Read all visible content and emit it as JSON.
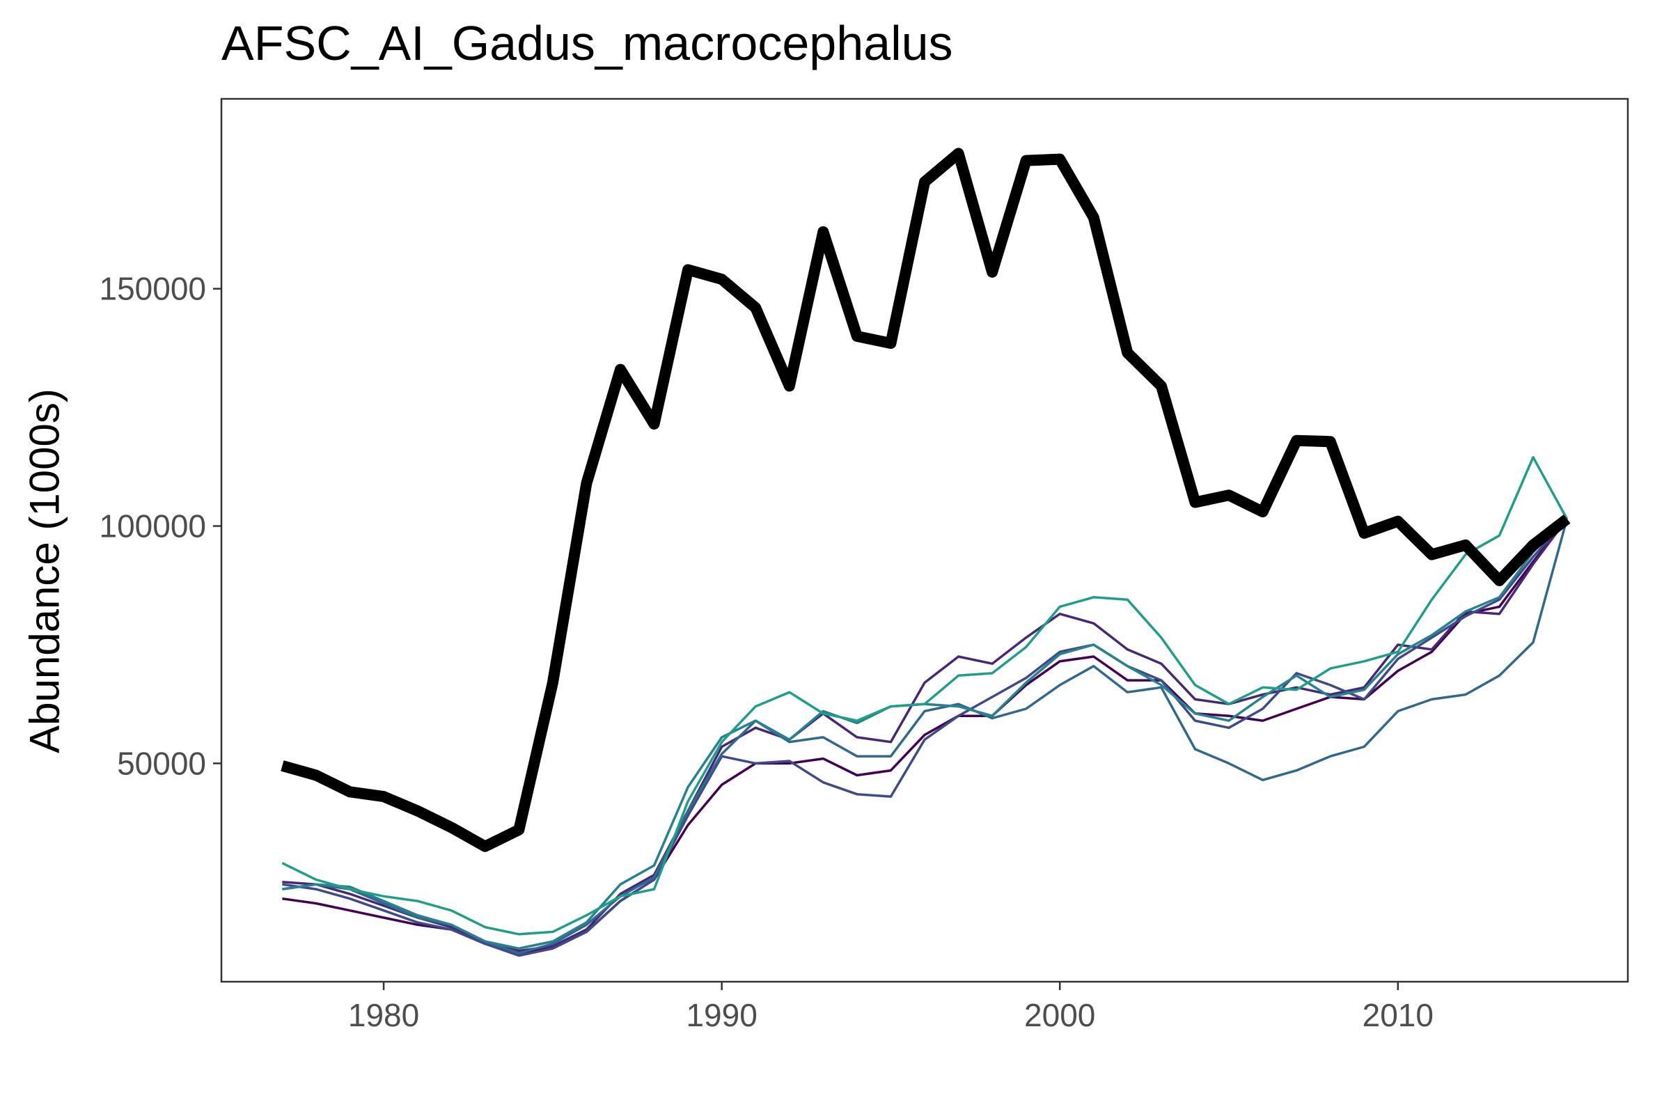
{
  "chart_data": {
    "type": "line",
    "title": "AFSC_AI_Gadus_macrocephalus",
    "xlabel": "",
    "ylabel": "Abundance (1000s)",
    "xlim": [
      1975.2,
      2016.8
    ],
    "ylim": [
      4000,
      190000
    ],
    "xticks": [
      1980,
      1990,
      2000,
      2010
    ],
    "yticks": [
      50000,
      100000,
      150000
    ],
    "grid": false,
    "legend": "none",
    "x": [
      1977,
      1978,
      1979,
      1980,
      1981,
      1982,
      1983,
      1984,
      1985,
      1986,
      1987,
      1988,
      1989,
      1990,
      1991,
      1992,
      1993,
      1994,
      1995,
      1996,
      1997,
      1998,
      1999,
      2000,
      2001,
      2002,
      2003,
      2004,
      2005,
      2006,
      2007,
      2008,
      2009,
      2010,
      2011,
      2012,
      2013,
      2014,
      2015
    ],
    "series": [
      {
        "role": "main",
        "color": "#000000",
        "width": 16,
        "values": [
          49500,
          47500,
          44000,
          43000,
          40000,
          36500,
          32500,
          36000,
          67000,
          109000,
          133000,
          121500,
          154000,
          152000,
          146000,
          129500,
          162000,
          140000,
          138500,
          172500,
          178500,
          153500,
          177000,
          177300,
          165000,
          136500,
          129500,
          105000,
          106500,
          103000,
          118000,
          117800,
          98500,
          101000,
          94000,
          96000,
          88500,
          96000,
          101500
        ]
      },
      {
        "color": "#440154",
        "width": 3.5,
        "values": [
          21500,
          20500,
          19000,
          17500,
          16000,
          15000,
          12000,
          10000,
          11500,
          14500,
          21000,
          25500,
          37000,
          45500,
          50000,
          50000,
          51000,
          47500,
          48500,
          56000,
          60000,
          60000,
          66500,
          71500,
          72500,
          67500,
          67500,
          60500,
          60000,
          59000,
          61500,
          64000,
          63500,
          69500,
          73500,
          81500,
          83000,
          92500,
          101500
        ]
      },
      {
        "color": "#472878",
        "width": 3.5,
        "values": [
          25000,
          24500,
          22500,
          20000,
          17500,
          15500,
          12000,
          10500,
          11500,
          15000,
          22500,
          26500,
          40000,
          53500,
          57500,
          55000,
          60500,
          55500,
          54500,
          67000,
          72500,
          71000,
          76500,
          81500,
          79500,
          74000,
          71000,
          63500,
          62500,
          64500,
          66000,
          64500,
          66000,
          75000,
          74000,
          82000,
          81500,
          92000,
          101500
        ]
      },
      {
        "color": "#3e4a89",
        "width": 3.5,
        "values": [
          24500,
          23500,
          21500,
          19000,
          16500,
          15000,
          12000,
          9500,
          11000,
          14500,
          21000,
          25500,
          39000,
          51500,
          50000,
          50500,
          46000,
          43500,
          43000,
          55000,
          60000,
          64000,
          68000,
          73500,
          75000,
          70500,
          67500,
          59000,
          57500,
          61500,
          69000,
          66500,
          63500,
          72000,
          76500,
          81000,
          84500,
          93500,
          101500
        ]
      },
      {
        "color": "#31688e",
        "width": 3.5,
        "values": [
          23500,
          24500,
          23500,
          20500,
          17500,
          16000,
          12500,
          10000,
          12000,
          16000,
          22000,
          26000,
          40000,
          52000,
          59000,
          54500,
          55500,
          51500,
          51500,
          61000,
          62500,
          59500,
          61500,
          66500,
          70500,
          65000,
          66000,
          53000,
          50000,
          46500,
          48500,
          51500,
          53500,
          61000,
          63500,
          64500,
          68500,
          75500,
          101500
        ]
      },
      {
        "color": "#26828e",
        "width": 3.5,
        "values": [
          23500,
          24500,
          24000,
          21000,
          18000,
          16000,
          12500,
          11000,
          12500,
          16500,
          24500,
          28500,
          45000,
          55500,
          59000,
          55000,
          61000,
          58500,
          62000,
          62500,
          62000,
          60000,
          67000,
          73000,
          75000,
          70500,
          66500,
          60500,
          59000,
          64000,
          68500,
          64000,
          65500,
          73000,
          77000,
          82000,
          85000,
          94500,
          101500
        ]
      },
      {
        "color": "#1f9e89",
        "width": 3.5,
        "values": [
          29000,
          25500,
          23500,
          22000,
          21000,
          19000,
          15500,
          14000,
          14500,
          18000,
          22000,
          23500,
          42000,
          54500,
          62000,
          65000,
          60500,
          59000,
          62000,
          62500,
          68500,
          69000,
          74500,
          83000,
          85000,
          84500,
          76500,
          66500,
          62500,
          66000,
          65500,
          70000,
          71500,
          73500,
          84500,
          94000,
          98000,
          114500,
          101500
        ]
      }
    ]
  }
}
